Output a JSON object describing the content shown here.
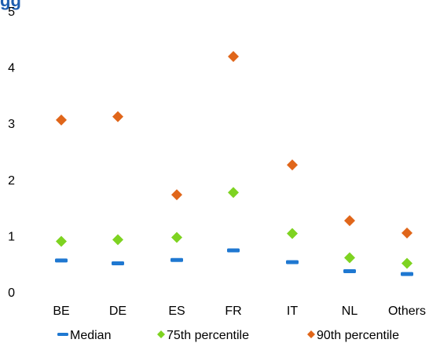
{
  "chart_data": {
    "type": "scatter",
    "title": "",
    "xlabel": "",
    "ylabel": "",
    "ylim": [
      0,
      5
    ],
    "yticks": [
      "0",
      "1",
      "2",
      "3",
      "4",
      "5"
    ],
    "categories": [
      "BE",
      "DE",
      "ES",
      "FR",
      "IT",
      "NL",
      "Others"
    ],
    "grid": false,
    "legend_position": "bottom",
    "series": [
      {
        "name": "Median",
        "marker": "dash",
        "color": "#1f78d1",
        "values": [
          0.56,
          0.51,
          0.57,
          0.74,
          0.53,
          0.37,
          0.32
        ]
      },
      {
        "name": "75th percentile",
        "marker": "diamond",
        "color": "#7ed321",
        "values": [
          0.9,
          0.93,
          0.97,
          1.77,
          1.04,
          0.61,
          0.51
        ]
      },
      {
        "name": "90th percentile",
        "marker": "diamond",
        "color": "#e0661a",
        "values": [
          3.06,
          3.12,
          1.73,
          4.19,
          2.26,
          1.27,
          1.05
        ]
      }
    ]
  },
  "top_cut_text": "gg",
  "top_cut_color": "#1f5fb0"
}
